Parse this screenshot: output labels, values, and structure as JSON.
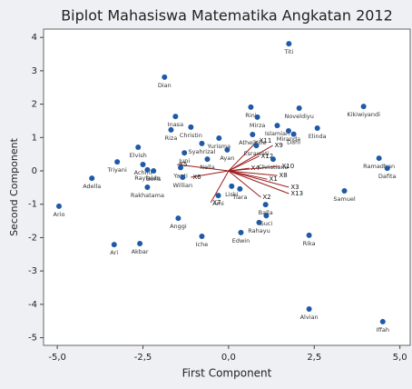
{
  "chart_data": {
    "type": "biplot",
    "title": "Biplot Mahasiswa Matematika Angkatan 2012",
    "x_label": "First Component",
    "y_label": "Second Component",
    "xlim": [
      -5.4,
      5.3
    ],
    "ylim": [
      -5.23,
      4.25
    ],
    "xticks": [
      {
        "value": -5,
        "label": "-5,0"
      },
      {
        "value": -2.5,
        "label": "-2,5"
      },
      {
        "value": 0,
        "label": "0,0"
      },
      {
        "value": 2.5,
        "label": "2,5"
      },
      {
        "value": 5,
        "label": "5,0"
      }
    ],
    "yticks": [
      -5,
      -4,
      -3,
      -2,
      -1,
      0,
      1,
      2,
      3,
      4
    ],
    "color": "#1f5aa6",
    "vector_color": "#9b1c1c",
    "point_labels": [
      "Titi",
      "Dian",
      "Rini",
      "Noveldiyu",
      "Kikiwiyandi",
      "Inasa",
      "Christin",
      "Mirza",
      "Islamiah",
      "Riza",
      "Miranda",
      "Dani",
      "Elinda",
      "Atheihille",
      "Ramadhan",
      "Dafita",
      "Elvish",
      "Triyani",
      "Achini",
      "Rayfaldo",
      "Boris",
      "Adella",
      "Rakhatama",
      "Ario",
      "Samuel",
      "Juni",
      "Syahrizal",
      "Yurisma",
      "Nella",
      "Ayan",
      "Esrawati",
      "Christiane",
      "Yanti",
      "Willian",
      "Tiara",
      "Liski",
      "Ami",
      "Anggi",
      "Iche",
      "Edwin",
      "Rahayu",
      "Suci",
      "Balla",
      "Rika",
      "Ari",
      "Akbar",
      "Alvian",
      "Iffah"
    ],
    "x": [
      1.76,
      -1.87,
      0.65,
      2.06,
      3.94,
      -1.55,
      -1.1,
      0.84,
      1.42,
      -1.68,
      1.75,
      1.9,
      2.59,
      0.7,
      4.39,
      4.63,
      -2.64,
      -3.25,
      -2.5,
      -2.37,
      -2.19,
      -3.99,
      -2.37,
      -4.95,
      3.38,
      -1.29,
      -0.78,
      -0.28,
      -0.62,
      -0.04,
      0.81,
      1.3,
      -1.4,
      -1.34,
      0.33,
      0.09,
      -0.3,
      -1.47,
      -0.78,
      0.36,
      0.89,
      1.1,
      1.08,
      2.35,
      -3.34,
      -2.59,
      2.35,
      4.5
    ],
    "values": [
      3.81,
      2.81,
      1.91,
      1.88,
      1.93,
      1.63,
      1.31,
      1.61,
      1.36,
      1.23,
      1.2,
      1.1,
      1.28,
      1.09,
      0.38,
      0.08,
      0.71,
      0.27,
      0.19,
      0.03,
      0.0,
      -0.22,
      -0.49,
      -1.06,
      -0.6,
      0.54,
      0.82,
      0.98,
      0.35,
      0.63,
      0.76,
      0.35,
      0.1,
      -0.19,
      -0.54,
      -0.46,
      -0.74,
      -1.42,
      -1.96,
      -1.85,
      -1.55,
      -1.34,
      -1.01,
      -1.93,
      -2.21,
      -2.18,
      -4.14,
      -4.52
    ],
    "vectors": [
      {
        "name": "X1",
        "x": 1.13,
        "y": -0.25
      },
      {
        "name": "X2",
        "x": 0.94,
        "y": -0.79
      },
      {
        "name": "X3",
        "x": 1.76,
        "y": -0.49
      },
      {
        "name": "X4",
        "x": 0.6,
        "y": 0.08
      },
      {
        "name": "X5",
        "x": -1.5,
        "y": 0.19
      },
      {
        "name": "X6",
        "x": -1.1,
        "y": -0.19
      },
      {
        "name": "X7",
        "x": -0.52,
        "y": -0.95
      },
      {
        "name": "X8",
        "x": 1.42,
        "y": -0.14
      },
      {
        "name": "X9",
        "x": 1.29,
        "y": 0.76
      },
      {
        "name": "X10",
        "x": 1.5,
        "y": 0.14
      },
      {
        "name": "X11",
        "x": 0.84,
        "y": 0.9
      },
      {
        "name": "X12",
        "x": 0.89,
        "y": 0.44
      },
      {
        "name": "X13",
        "x": 1.76,
        "y": -0.68
      }
    ]
  }
}
